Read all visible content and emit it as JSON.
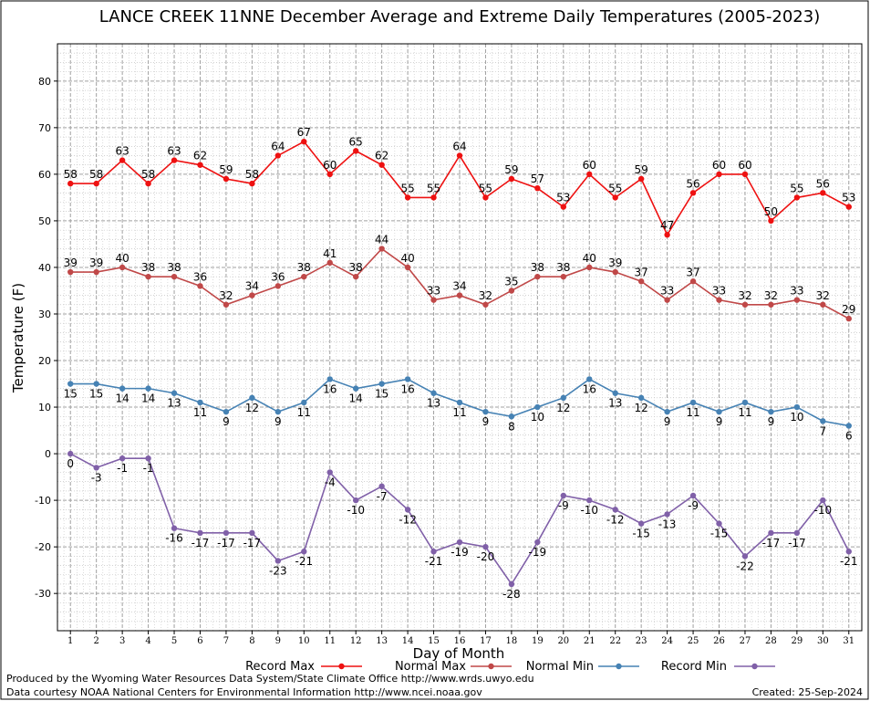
{
  "chart_data": {
    "type": "line",
    "title": "LANCE CREEK 11NNE December Average and Extreme Daily Temperatures (2005-2023)",
    "xlabel": "Day of Month",
    "ylabel": "Temperature (F)",
    "ylim": [
      -38,
      88
    ],
    "yticks": [
      -30,
      -20,
      -10,
      0,
      10,
      20,
      30,
      40,
      50,
      60,
      70,
      80
    ],
    "x": [
      1,
      2,
      3,
      4,
      5,
      6,
      7,
      8,
      9,
      10,
      11,
      12,
      13,
      14,
      15,
      16,
      17,
      18,
      19,
      20,
      21,
      22,
      23,
      24,
      25,
      26,
      27,
      28,
      29,
      30,
      31
    ],
    "grid": true,
    "legend_position": "bottom",
    "series": [
      {
        "name": "Record Max",
        "color": "#ee1111",
        "label_pos": "above",
        "values": [
          58,
          58,
          63,
          58,
          63,
          62,
          59,
          58,
          64,
          67,
          60,
          65,
          62,
          55,
          55,
          64,
          55,
          59,
          57,
          53,
          60,
          55,
          59,
          47,
          56,
          60,
          60,
          50,
          55,
          56,
          53
        ]
      },
      {
        "name": "Normal Max",
        "color": "#c04848",
        "label_pos": "above",
        "values": [
          39,
          39,
          40,
          38,
          38,
          36,
          32,
          34,
          36,
          38,
          41,
          38,
          44,
          40,
          33,
          34,
          32,
          35,
          38,
          38,
          40,
          39,
          37,
          33,
          37,
          33,
          32,
          32,
          33,
          32,
          29
        ]
      },
      {
        "name": "Normal Min",
        "color": "#4682b4",
        "label_pos": "below",
        "values": [
          15,
          15,
          14,
          14,
          13,
          11,
          9,
          12,
          9,
          11,
          16,
          14,
          15,
          16,
          13,
          11,
          9,
          8,
          10,
          12,
          16,
          13,
          12,
          9,
          11,
          9,
          11,
          9,
          10,
          7,
          6
        ]
      },
      {
        "name": "Record Min",
        "color": "#8060a8",
        "label_pos": "below",
        "values": [
          0,
          -3,
          -1,
          -1,
          -16,
          -17,
          -17,
          -17,
          -23,
          -21,
          -4,
          -10,
          -7,
          -12,
          -21,
          -19,
          -20,
          -28,
          -19,
          -9,
          -10,
          -12,
          -15,
          -13,
          -9,
          -15,
          -22,
          -17,
          -17,
          -10,
          -21
        ]
      }
    ]
  },
  "footer": {
    "produced_by": "Produced by the Wyoming Water Resources Data System/State Climate Office http://www.wrds.uwyo.edu",
    "data_courtesy": "Data courtesy NOAA National Centers for Environmental Information http://www.ncei.noaa.gov",
    "created": "Created:  25-Sep-2024"
  }
}
